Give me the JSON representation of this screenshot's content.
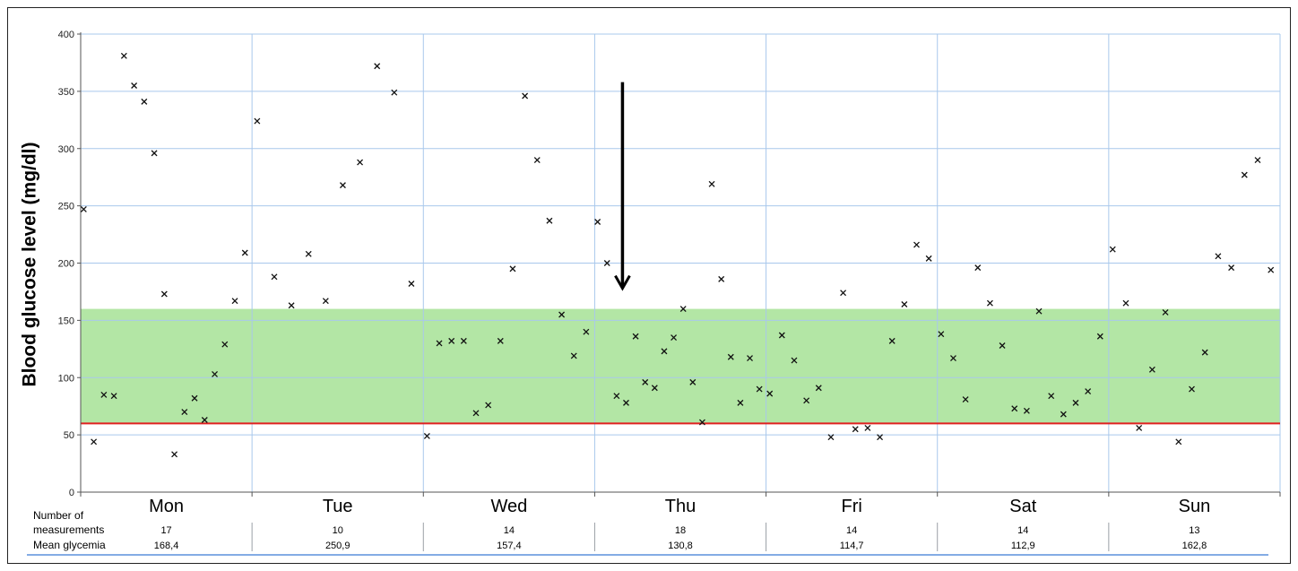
{
  "chart_data": {
    "type": "scatter",
    "xlabel": "",
    "ylabel": "Blood glucose level (mg/dl)",
    "ylim": [
      0,
      400
    ],
    "yticks": [
      0,
      50,
      100,
      150,
      200,
      250,
      300,
      350,
      400
    ],
    "grid": true,
    "target_range": {
      "low": 60,
      "high": 160,
      "color": "#b3e6a5"
    },
    "hypoglycemia_line": {
      "value": 60,
      "color": "#e02020"
    },
    "marker": "x",
    "arrow_annotation": {
      "day_index": 3,
      "top_value": 358,
      "bottom_value": 178
    },
    "days": [
      {
        "name": "Mon",
        "n": "17",
        "mean": "168,4",
        "values": [
          247,
          44,
          85,
          84,
          381,
          355,
          341,
          296,
          173,
          33,
          70,
          82,
          63,
          103,
          129,
          167,
          209
        ]
      },
      {
        "name": "Tue",
        "n": "10",
        "mean": "250,9",
        "values": [
          324,
          188,
          163,
          208,
          167,
          268,
          288,
          372,
          349,
          182
        ]
      },
      {
        "name": "Wed",
        "n": "14",
        "mean": "157,4",
        "values": [
          49,
          130,
          132,
          132,
          69,
          76,
          132,
          195,
          346,
          290,
          237,
          155,
          119,
          140
        ]
      },
      {
        "name": "Thu",
        "n": "18",
        "mean": "130,8",
        "values": [
          236,
          200,
          84,
          78,
          136,
          96,
          91,
          123,
          135,
          160,
          96,
          61,
          269,
          186,
          118,
          78,
          117,
          90
        ]
      },
      {
        "name": "Fri",
        "n": "14",
        "mean": "114,7",
        "values": [
          86,
          137,
          115,
          80,
          91,
          48,
          174,
          55,
          56,
          48,
          132,
          164,
          216,
          204
        ]
      },
      {
        "name": "Sat",
        "n": "14",
        "mean": "112,9",
        "values": [
          138,
          117,
          81,
          196,
          165,
          128,
          73,
          71,
          158,
          84,
          68,
          78,
          88,
          136
        ]
      },
      {
        "name": "Sun",
        "n": "13",
        "mean": "162,8",
        "values": [
          212,
          165,
          56,
          107,
          157,
          44,
          90,
          122,
          206,
          196,
          277,
          290,
          194
        ]
      }
    ]
  },
  "table": {
    "row1_label_line1": "Number of",
    "row1_label_line2": "measurements",
    "row2_label": "Mean glycemia"
  }
}
